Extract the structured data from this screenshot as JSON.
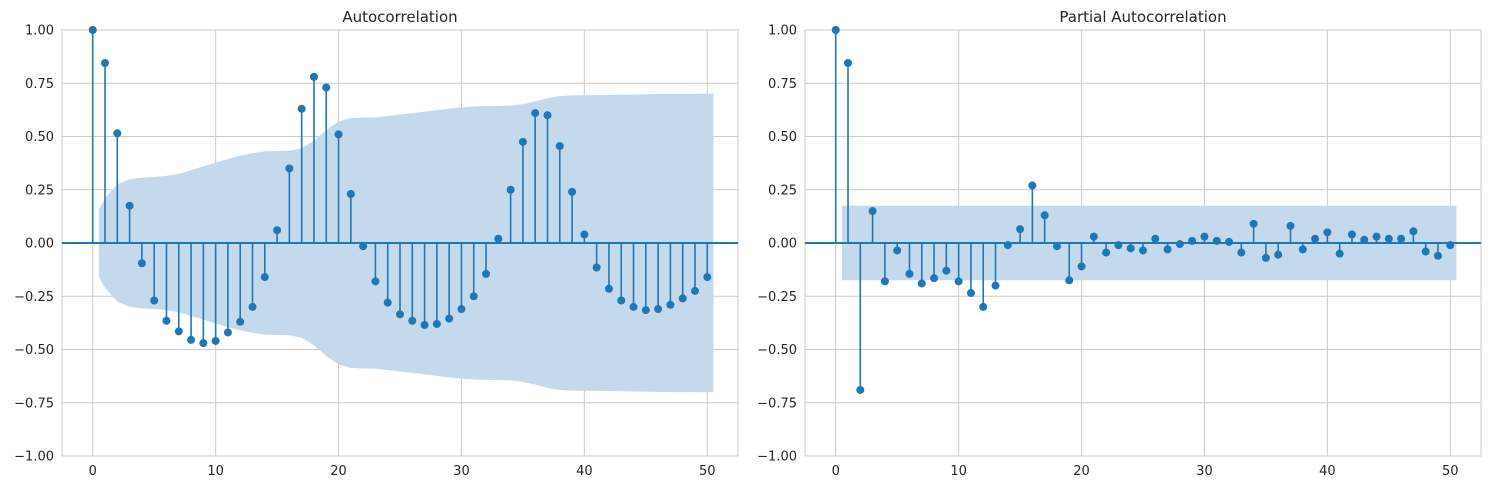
{
  "chart_data": [
    {
      "type": "stem",
      "title": "Autocorrelation",
      "xlabel": "",
      "ylabel": "",
      "xlim": [
        -2.5,
        52.5
      ],
      "ylim": [
        -1.0,
        1.0
      ],
      "grid": true,
      "xticks": [
        0,
        10,
        20,
        30,
        40,
        50
      ],
      "yticks": [
        -1.0,
        -0.75,
        -0.5,
        -0.25,
        0.0,
        0.25,
        0.5,
        0.75,
        1.0
      ],
      "ytick_labels": [
        "−1.00",
        "−0.75",
        "−0.50",
        "−0.25",
        "0.00",
        "0.25",
        "0.50",
        "0.75",
        "1.00"
      ],
      "lags": [
        0,
        1,
        2,
        3,
        4,
        5,
        6,
        7,
        8,
        9,
        10,
        11,
        12,
        13,
        14,
        15,
        16,
        17,
        18,
        19,
        20,
        21,
        22,
        23,
        24,
        25,
        26,
        27,
        28,
        29,
        30,
        31,
        32,
        33,
        34,
        35,
        36,
        37,
        38,
        39,
        40,
        41,
        42,
        43,
        44,
        45,
        46,
        47,
        48,
        49,
        50
      ],
      "values": [
        1.0,
        0.845,
        0.515,
        0.175,
        -0.095,
        -0.27,
        -0.365,
        -0.415,
        -0.455,
        -0.47,
        -0.46,
        -0.42,
        -0.37,
        -0.3,
        -0.16,
        0.06,
        0.35,
        0.63,
        0.78,
        0.73,
        0.51,
        0.23,
        -0.015,
        -0.18,
        -0.28,
        -0.335,
        -0.365,
        -0.385,
        -0.38,
        -0.355,
        -0.31,
        -0.25,
        -0.145,
        0.02,
        0.25,
        0.475,
        0.61,
        0.6,
        0.455,
        0.24,
        0.04,
        -0.115,
        -0.215,
        -0.27,
        -0.3,
        -0.315,
        -0.31,
        -0.29,
        -0.26,
        -0.225,
        -0.16
      ],
      "confidence_band": {
        "lags": [
          0.5,
          1,
          2,
          3,
          4,
          5,
          6,
          7,
          8,
          9,
          10,
          11,
          12,
          13,
          14,
          15,
          16,
          17,
          18,
          19,
          20,
          21,
          22,
          23,
          24,
          25,
          26,
          27,
          28,
          29,
          30,
          31,
          32,
          33,
          34,
          35,
          36,
          37,
          38,
          39,
          40,
          41,
          42,
          43,
          44,
          45,
          46,
          47,
          48,
          49,
          50,
          50.5
        ],
        "upper": [
          0.16,
          0.21,
          0.275,
          0.3,
          0.307,
          0.31,
          0.315,
          0.325,
          0.342,
          0.36,
          0.378,
          0.395,
          0.41,
          0.422,
          0.43,
          0.432,
          0.433,
          0.445,
          0.48,
          0.53,
          0.57,
          0.587,
          0.589,
          0.59,
          0.596,
          0.603,
          0.61,
          0.617,
          0.624,
          0.631,
          0.637,
          0.641,
          0.643,
          0.643,
          0.645,
          0.652,
          0.665,
          0.68,
          0.69,
          0.693,
          0.694,
          0.694,
          0.695,
          0.696,
          0.697,
          0.698,
          0.699,
          0.7,
          0.7,
          0.701,
          0.701,
          0.701
        ]
      }
    },
    {
      "type": "stem",
      "title": "Partial Autocorrelation",
      "xlabel": "",
      "ylabel": "",
      "xlim": [
        -2.5,
        52.5
      ],
      "ylim": [
        -1.0,
        1.0
      ],
      "grid": true,
      "xticks": [
        0,
        10,
        20,
        30,
        40,
        50
      ],
      "yticks": [
        -1.0,
        -0.75,
        -0.5,
        -0.25,
        0.0,
        0.25,
        0.5,
        0.75,
        1.0
      ],
      "ytick_labels": [
        "−1.00",
        "−0.75",
        "−0.50",
        "−0.25",
        "0.00",
        "0.25",
        "0.50",
        "0.75",
        "1.00"
      ],
      "lags": [
        0,
        1,
        2,
        3,
        4,
        5,
        6,
        7,
        8,
        9,
        10,
        11,
        12,
        13,
        14,
        15,
        16,
        17,
        18,
        19,
        20,
        21,
        22,
        23,
        24,
        25,
        26,
        27,
        28,
        29,
        30,
        31,
        32,
        33,
        34,
        35,
        36,
        37,
        38,
        39,
        40,
        41,
        42,
        43,
        44,
        45,
        46,
        47,
        48,
        49,
        50
      ],
      "values": [
        1.0,
        0.845,
        -0.69,
        0.15,
        -0.18,
        -0.035,
        -0.145,
        -0.19,
        -0.165,
        -0.13,
        -0.18,
        -0.235,
        -0.3,
        -0.2,
        -0.01,
        0.065,
        0.27,
        0.13,
        -0.015,
        -0.175,
        -0.11,
        0.03,
        -0.045,
        -0.01,
        -0.025,
        -0.035,
        0.02,
        -0.03,
        -0.005,
        0.01,
        0.03,
        0.01,
        0.005,
        -0.045,
        0.09,
        -0.07,
        -0.055,
        0.08,
        -0.03,
        0.02,
        0.05,
        -0.05,
        0.04,
        0.015,
        0.03,
        0.02,
        0.02,
        0.055,
        -0.04,
        -0.06,
        -0.01
      ],
      "confidence_band": {
        "lags": [
          0.5,
          50.5
        ],
        "upper": [
          0.175,
          0.175
        ]
      }
    }
  ],
  "colors": {
    "stem": "#1f77b4",
    "band": "#c4d9ec",
    "grid": "#cccccc",
    "text": "#262626"
  }
}
